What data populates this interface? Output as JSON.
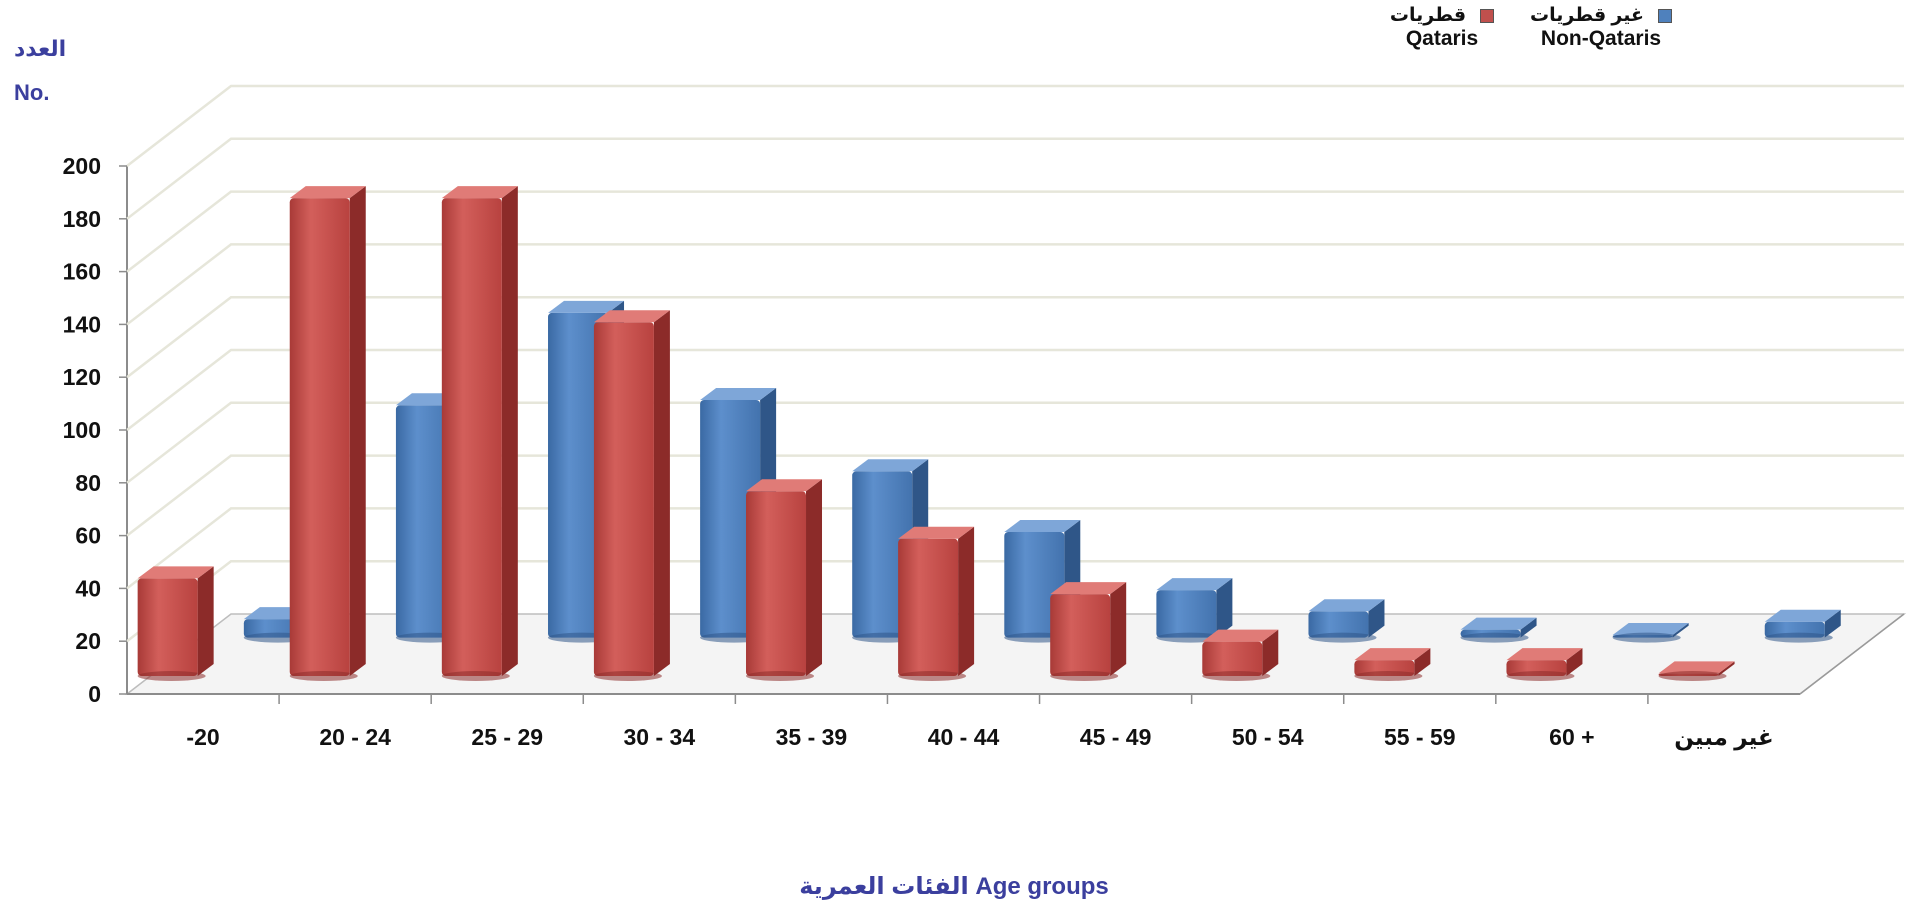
{
  "chart_data": {
    "type": "bar",
    "ylabel_ar": "العدد",
    "ylabel_en": "No.",
    "xlabel": "الفئات العمرية Age groups",
    "categories": [
      "-20",
      "20 - 24",
      "25 - 29",
      "30 - 34",
      "35 - 39",
      "40 - 44",
      "45 - 49",
      "50 - 54",
      "55 - 59",
      "60 +",
      "غير مبين"
    ],
    "series": [
      {
        "name_ar": "قطريات",
        "name_en": "Qataris",
        "color": "#c0504d",
        "values": [
          37,
          181,
          181,
          134,
          70,
          52,
          31,
          13,
          6,
          6,
          1
        ]
      },
      {
        "name_ar": "غير قطريات",
        "name_en": "Non-Qataris",
        "color": "#4f81bd",
        "values": [
          7,
          88,
          123,
          90,
          63,
          40,
          18,
          10,
          3,
          1,
          6
        ]
      }
    ],
    "ylim": [
      0,
      200
    ],
    "yticks": [
      0,
      20,
      40,
      60,
      80,
      100,
      120,
      140,
      160,
      180,
      200
    ],
    "grid": true,
    "legend_position": "top-right"
  }
}
